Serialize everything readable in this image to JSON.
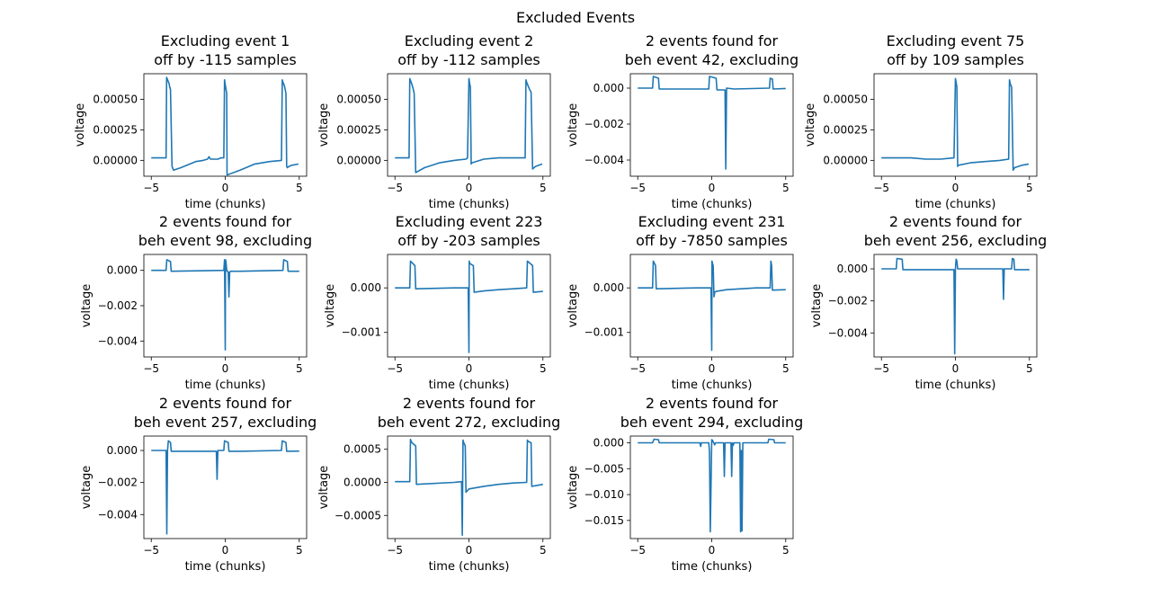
{
  "figure": {
    "suptitle": "Excluded Events",
    "line_color": "#1f77b4"
  },
  "chart_data": [
    {
      "type": "line",
      "title": "Excluding event 1\noff by -115 samples",
      "xlabel": "time (chunks)",
      "ylabel": "voltage",
      "xlim": [
        -5.5,
        5.5
      ],
      "ylim": [
        -0.00013,
        0.00071
      ],
      "xticks": [
        -5,
        0,
        5
      ],
      "xtick_labels": [
        "−5",
        "0",
        "5"
      ],
      "yticks": [
        0.0,
        0.00025,
        0.0005
      ],
      "ytick_labels": [
        "0.00000",
        "0.00025",
        "0.00050"
      ],
      "series": [
        {
          "x": [
            -5,
            -4.9,
            -4.1,
            -4,
            -3.96,
            -3.8,
            -3.75,
            -3.7,
            -3.6,
            -3.5,
            -3.0,
            -2.0,
            -1.5,
            -1.2,
            -1.1,
            -1.0,
            -0.5,
            -0.3,
            -0.2,
            -0.1,
            -0.05,
            0.0,
            0.1,
            0.12,
            1.0,
            2.0,
            3.0,
            3.8,
            3.85,
            3.9,
            4.0,
            4.1,
            4.15,
            4.2,
            4.3,
            4.5,
            4.95
          ],
          "y": [
            2e-05,
            2e-05,
            2e-05,
            2e-05,
            0.00068,
            0.00063,
            0.0006,
            0.00058,
            -5e-05,
            -8e-05,
            -6e-05,
            -1e-05,
            0.0,
            1e-05,
            3e-05,
            1e-05,
            1e-05,
            2e-05,
            2e-05,
            2e-05,
            0.00066,
            0.00062,
            0.00055,
            -0.00012,
            -8e-05,
            -3e-05,
            -1e-05,
            0.0,
            0.00066,
            0.00064,
            0.00061,
            0.00055,
            -5e-05,
            -6e-05,
            -5e-05,
            -4e-05,
            -3e-05
          ]
        }
      ]
    },
    {
      "type": "line",
      "title": "Excluding event 2\noff by -112 samples",
      "xlabel": "time (chunks)",
      "ylabel": "voltage",
      "xlim": [
        -5.5,
        5.5
      ],
      "ylim": [
        -0.00013,
        0.00071
      ],
      "xticks": [
        -5,
        0,
        5
      ],
      "xtick_labels": [
        "−5",
        "0",
        "5"
      ],
      "yticks": [
        0.0,
        0.00025,
        0.0005
      ],
      "ytick_labels": [
        "0.00000",
        "0.00025",
        "0.00050"
      ],
      "series": [
        {
          "x": [
            -5,
            -4.2,
            -4.05,
            -4.0,
            -3.9,
            -3.8,
            -3.7,
            -3.6,
            -3.0,
            -2.0,
            -1.0,
            -0.2,
            -0.1,
            0.0,
            0.05,
            0.1,
            0.15,
            0.2,
            1.0,
            2.0,
            3.0,
            3.8,
            3.85,
            3.9,
            4.0,
            4.1,
            4.2,
            4.3,
            4.5,
            4.95
          ],
          "y": [
            2e-05,
            2e-05,
            2e-05,
            0.00067,
            0.00064,
            0.0006,
            0.00055,
            -0.0001,
            -6e-05,
            -2e-05,
            0.0,
            1e-05,
            2e-05,
            0.00067,
            0.00063,
            0.0006,
            -3e-05,
            -2e-05,
            1e-05,
            2e-05,
            2e-05,
            2e-05,
            0.00066,
            0.00064,
            0.00061,
            0.00058,
            0.00056,
            -7e-05,
            -5e-05,
            -3e-05
          ]
        }
      ]
    },
    {
      "type": "line",
      "title": "2 events found for\nbeh event 42, excluding",
      "xlabel": "time (chunks)",
      "ylabel": "voltage",
      "xlim": [
        -5.5,
        5.5
      ],
      "ylim": [
        -0.0049,
        0.0008
      ],
      "xticks": [
        -5,
        0,
        5
      ],
      "xtick_labels": [
        "−5",
        "0",
        "5"
      ],
      "yticks": [
        -0.004,
        -0.002,
        0.0
      ],
      "ytick_labels": [
        "−0.004",
        "−0.002",
        "0.000"
      ],
      "series": [
        {
          "x": [
            -5,
            -4.0,
            -3.95,
            -3.6,
            -3.55,
            -0.2,
            -0.15,
            0.3,
            0.35,
            0.9,
            0.95,
            1.0,
            1.5,
            3.9,
            3.95,
            4.1,
            4.15,
            5.0
          ],
          "y": [
            0.0,
            0.0,
            0.00065,
            0.00055,
            -5e-05,
            -5e-05,
            0.00065,
            0.00055,
            -0.0001,
            -0.0001,
            -0.0045,
            0.0,
            -5e-05,
            0.0,
            0.00055,
            0.0005,
            -5e-05,
            -2e-05
          ]
        }
      ]
    },
    {
      "type": "line",
      "title": "Excluding event 75\noff by 109 samples",
      "xlabel": "time (chunks)",
      "ylabel": "voltage",
      "xlim": [
        -5.5,
        5.5
      ],
      "ylim": [
        -0.00013,
        0.00071
      ],
      "xticks": [
        -5,
        0,
        5
      ],
      "xtick_labels": [
        "−5",
        "0",
        "5"
      ],
      "yticks": [
        0.0,
        0.00025,
        0.0005
      ],
      "ytick_labels": [
        "0.00000",
        "0.00025",
        "0.00050"
      ],
      "series": [
        {
          "x": [
            -5,
            -4.0,
            -3.0,
            -2.0,
            -1.0,
            -0.1,
            0.0,
            0.05,
            0.1,
            0.15,
            0.2,
            1.0,
            2.0,
            3.0,
            3.6,
            3.65,
            3.7,
            3.8,
            3.9,
            4.0,
            4.5,
            4.95
          ],
          "y": [
            2e-05,
            2e-05,
            2e-05,
            1e-05,
            1e-05,
            2e-05,
            0.00067,
            0.00064,
            0.0006,
            -5e-05,
            -4e-05,
            -2e-05,
            -1e-05,
            0.0,
            1e-05,
            0.00066,
            0.00063,
            0.0006,
            -8e-05,
            -6e-05,
            -4e-05,
            -3e-05
          ]
        }
      ]
    },
    {
      "type": "line",
      "title": "2 events found for\nbeh event 98, excluding",
      "xlabel": "time (chunks)",
      "ylabel": "voltage",
      "xlim": [
        -5.5,
        5.5
      ],
      "ylim": [
        -0.0049,
        0.0009
      ],
      "xticks": [
        -5,
        0,
        5
      ],
      "xtick_labels": [
        "−5",
        "0",
        "5"
      ],
      "yticks": [
        -0.004,
        -0.002,
        0.0
      ],
      "ytick_labels": [
        "−0.004",
        "−0.002",
        "0.000"
      ],
      "series": [
        {
          "x": [
            -5,
            -4.0,
            -3.95,
            -3.7,
            -3.65,
            -0.1,
            -0.05,
            0.0,
            0.02,
            0.05,
            0.1,
            0.2,
            0.25,
            0.3,
            0.35,
            1.0,
            3.9,
            3.95,
            4.2,
            4.25,
            5.0
          ],
          "y": [
            0.0,
            0.0,
            0.0006,
            0.0005,
            -5e-05,
            0.0,
            0.0006,
            -0.0045,
            0.0006,
            0.0005,
            0.0,
            -0.0001,
            -0.0015,
            -0.0001,
            -5e-05,
            -5e-05,
            0.0,
            0.0006,
            0.0005,
            -5e-05,
            -5e-05
          ]
        }
      ]
    },
    {
      "type": "line",
      "title": "Excluding event 223\noff by -203 samples",
      "xlabel": "time (chunks)",
      "ylabel": "voltage",
      "xlim": [
        -5.5,
        5.5
      ],
      "ylim": [
        -0.00155,
        0.00075
      ],
      "xticks": [
        -5,
        0,
        5
      ],
      "xtick_labels": [
        "−5",
        "0",
        "5"
      ],
      "yticks": [
        -0.001,
        0.0
      ],
      "ytick_labels": [
        "−0.001",
        "0.000"
      ],
      "series": [
        {
          "x": [
            -5,
            -4.0,
            -3.95,
            -3.65,
            -3.6,
            -1.0,
            -0.05,
            0.0,
            0.02,
            0.05,
            0.3,
            0.35,
            1.0,
            2.0,
            3.0,
            3.9,
            3.95,
            4.3,
            4.35,
            5.0
          ],
          "y": [
            0.0,
            0.0,
            0.0006,
            0.0005,
            -2e-05,
            0.0,
            0.0,
            -0.00145,
            0.0006,
            0.00055,
            0.0005,
            -0.0001,
            -7e-05,
            -4e-05,
            -2e-05,
            0.0,
            0.0006,
            0.0005,
            -0.0001,
            -8e-05
          ]
        }
      ]
    },
    {
      "type": "line",
      "title": "Excluding event 231\noff by -7850 samples",
      "xlabel": "time (chunks)",
      "ylabel": "voltage",
      "xlim": [
        -5.5,
        5.5
      ],
      "ylim": [
        -0.00155,
        0.00075
      ],
      "xticks": [
        -5,
        0,
        5
      ],
      "xtick_labels": [
        "−5",
        "0",
        "5"
      ],
      "yticks": [
        -0.001,
        0.0
      ],
      "ytick_labels": [
        "−0.001",
        "0.000"
      ],
      "series": [
        {
          "x": [
            -5,
            -4.0,
            -3.95,
            -3.8,
            -3.75,
            -1.0,
            -0.05,
            0.0,
            0.02,
            0.05,
            0.1,
            0.15,
            0.2,
            0.3,
            1.0,
            2.0,
            3.0,
            3.95,
            4.0,
            4.05,
            4.1,
            5.0
          ],
          "y": [
            0.0,
            0.0,
            0.0006,
            0.0005,
            -2e-05,
            0.0,
            0.0,
            -0.0014,
            0.0006,
            0.00055,
            0.0005,
            -0.0002,
            -0.0001,
            -8e-05,
            -4e-05,
            -2e-05,
            0.0,
            0.0,
            0.0006,
            0.0005,
            -5e-05,
            -4e-05
          ]
        }
      ]
    },
    {
      "type": "line",
      "title": "2 events found for\nbeh event 256, excluding",
      "xlabel": "time (chunks)",
      "ylabel": "voltage",
      "xlim": [
        -5.5,
        5.5
      ],
      "ylim": [
        -0.0055,
        0.0009
      ],
      "xticks": [
        -5,
        0,
        5
      ],
      "xtick_labels": [
        "−5",
        "0",
        "5"
      ],
      "yticks": [
        -0.004,
        -0.002,
        0.0
      ],
      "ytick_labels": [
        "−0.004",
        "−0.002",
        "0.000"
      ],
      "series": [
        {
          "x": [
            -5,
            -4.0,
            -3.95,
            -3.6,
            -3.55,
            -0.1,
            -0.05,
            0.0,
            0.05,
            0.1,
            0.15,
            1.0,
            3.2,
            3.25,
            3.3,
            3.8,
            3.85,
            3.95,
            4.0,
            5.0
          ],
          "y": [
            0.0,
            0.0,
            0.00065,
            0.0006,
            -5e-05,
            -5e-05,
            -0.0053,
            0.0,
            0.0006,
            0.0005,
            0.0,
            0.0,
            0.0,
            -0.0019,
            0.0,
            0.0,
            0.00065,
            0.0006,
            -5e-05,
            -5e-05
          ]
        }
      ]
    },
    {
      "type": "line",
      "title": "2 events found for\nbeh event 257, excluding",
      "xlabel": "time (chunks)",
      "ylabel": "voltage",
      "xlim": [
        -5.5,
        5.5
      ],
      "ylim": [
        -0.0055,
        0.0009
      ],
      "xticks": [
        -5,
        0,
        5
      ],
      "xtick_labels": [
        "−5",
        "0",
        "5"
      ],
      "yticks": [
        -0.004,
        -0.002,
        0.0
      ],
      "ytick_labels": [
        "−0.004",
        "−0.002",
        "0.000"
      ],
      "series": [
        {
          "x": [
            -5,
            -4.0,
            -3.95,
            -3.9,
            -3.85,
            -3.7,
            -3.65,
            -0.6,
            -0.55,
            -0.5,
            -0.1,
            -0.05,
            0.2,
            0.25,
            1.0,
            3.8,
            3.85,
            4.1,
            4.15,
            5.0
          ],
          "y": [
            0.0,
            0.0,
            -0.0052,
            0.0,
            0.0006,
            0.0005,
            -5e-05,
            -5e-05,
            -0.0018,
            0.0,
            0.0,
            0.0006,
            0.0005,
            -5e-05,
            -5e-05,
            0.0,
            0.0006,
            0.0005,
            -5e-05,
            -4e-05
          ]
        }
      ]
    },
    {
      "type": "line",
      "title": "2 events found for\nbeh event 272, excluding",
      "xlabel": "time (chunks)",
      "ylabel": "voltage",
      "xlim": [
        -5.5,
        5.5
      ],
      "ylim": [
        -0.00085,
        0.0007
      ],
      "xticks": [
        -5,
        0,
        5
      ],
      "xtick_labels": [
        "−5",
        "0",
        "5"
      ],
      "yticks": [
        -0.0005,
        0.0,
        0.0005
      ],
      "ytick_labels": [
        "−0.0005",
        "0.0000",
        "0.0005"
      ],
      "series": [
        {
          "x": [
            -5,
            -4.0,
            -3.95,
            -3.9,
            -3.85,
            -3.6,
            -3.55,
            -1.0,
            -0.5,
            -0.45,
            -0.4,
            -0.35,
            -0.25,
            -0.2,
            0.0,
            1.0,
            2.0,
            3.0,
            3.9,
            3.95,
            4.0,
            4.2,
            4.25,
            5.0
          ],
          "y": [
            1e-05,
            1e-05,
            0.00065,
            0.00062,
            0.0006,
            0.00055,
            -3e-05,
            0.0,
            1e-05,
            -0.0008,
            0.00064,
            0.0006,
            0.00055,
            -0.00015,
            -0.0001,
            -6e-05,
            -3e-05,
            -1e-05,
            0.0,
            0.00064,
            0.00062,
            0.0006,
            -6e-05,
            -3e-05
          ]
        }
      ]
    },
    {
      "type": "line",
      "title": "2 events found for\nbeh event 294, excluding",
      "xlabel": "time (chunks)",
      "ylabel": "voltage",
      "xlim": [
        -5.5,
        5.5
      ],
      "ylim": [
        -0.0185,
        0.0013
      ],
      "xticks": [
        -5,
        0,
        5
      ],
      "xtick_labels": [
        "−5",
        "0",
        "5"
      ],
      "yticks": [
        -0.015,
        -0.01,
        -0.005,
        0.0
      ],
      "ytick_labels": [
        "−0.015",
        "−0.010",
        "−0.005",
        "0.000"
      ],
      "series": [
        {
          "x": [
            -5,
            -4.0,
            -3.9,
            -3.6,
            -3.55,
            -0.8,
            -0.75,
            -0.7,
            -0.2,
            -0.15,
            -0.1,
            0.0,
            0.05,
            0.2,
            0.25,
            0.8,
            0.85,
            0.9,
            1.3,
            1.35,
            1.4,
            1.45,
            1.5,
            1.9,
            1.95,
            2.0,
            2.05,
            2.1,
            3.8,
            3.85,
            4.2,
            4.25,
            5.0
          ],
          "y": [
            0.0,
            0.0,
            0.0007,
            0.0006,
            0.0,
            0.0,
            -0.0007,
            0.0,
            0.0,
            -0.0017,
            -0.0172,
            0.0006,
            0.0005,
            -0.0004,
            0.0,
            0.0,
            -0.0065,
            0.0,
            0.0,
            -0.0065,
            0.0,
            -0.0005,
            0.0,
            0.0,
            -0.0172,
            -0.0015,
            -0.017,
            0.0,
            0.0,
            0.0007,
            0.0006,
            0.0,
            0.0
          ]
        }
      ]
    }
  ]
}
